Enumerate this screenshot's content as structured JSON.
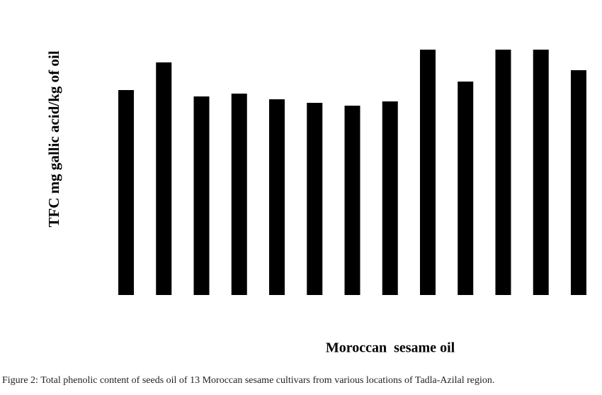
{
  "chart_data": {
    "type": "bar",
    "y_label": "TFC mg gallic acid/kg of oil",
    "x_label": "Moroccan  sesame oil",
    "caption": "Figure 2: Total phenolic content of seeds oil of 13 Moroccan sesame cultivars from various locations of Tadla-Azilal region.",
    "categories": [
      null,
      null,
      null,
      null,
      null,
      null,
      null,
      null,
      null,
      null,
      null,
      null,
      null
    ],
    "values": [
      289,
      328,
      280,
      284,
      276,
      271,
      267,
      273,
      346,
      301,
      346,
      346,
      317
    ],
    "color": "#000000",
    "ylim": [
      0,
      350
    ]
  }
}
